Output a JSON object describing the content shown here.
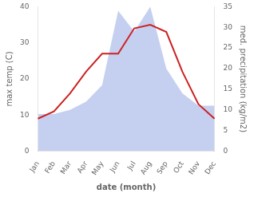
{
  "chart_data": {
    "type": "line",
    "xlabel": "date (month)",
    "ylabel": "max temp (C)",
    "y2label": "med. precipitation (kg/m2)",
    "categories": [
      "Jan",
      "Feb",
      "Mar",
      "Apr",
      "May",
      "Jun",
      "Jul",
      "Aug",
      "Sep",
      "Oct",
      "Nov",
      "Dec"
    ],
    "series": [
      {
        "type": "area",
        "axis": "y2",
        "color": "#c5d0f0",
        "values": [
          9,
          9,
          10,
          12,
          16,
          34,
          29,
          35,
          20,
          14,
          11,
          11
        ]
      },
      {
        "type": "line",
        "color": "#cc2222",
        "values": [
          9,
          11,
          16,
          22,
          27,
          27,
          34,
          35,
          33,
          22,
          13,
          9
        ]
      }
    ],
    "ylim": [
      0,
      40
    ],
    "yticks": [
      0,
      10,
      20,
      30,
      40
    ],
    "y2lim": [
      0,
      35
    ],
    "y2ticks": [
      0,
      5,
      10,
      15,
      20,
      25,
      30,
      35
    ],
    "grid": false
  }
}
